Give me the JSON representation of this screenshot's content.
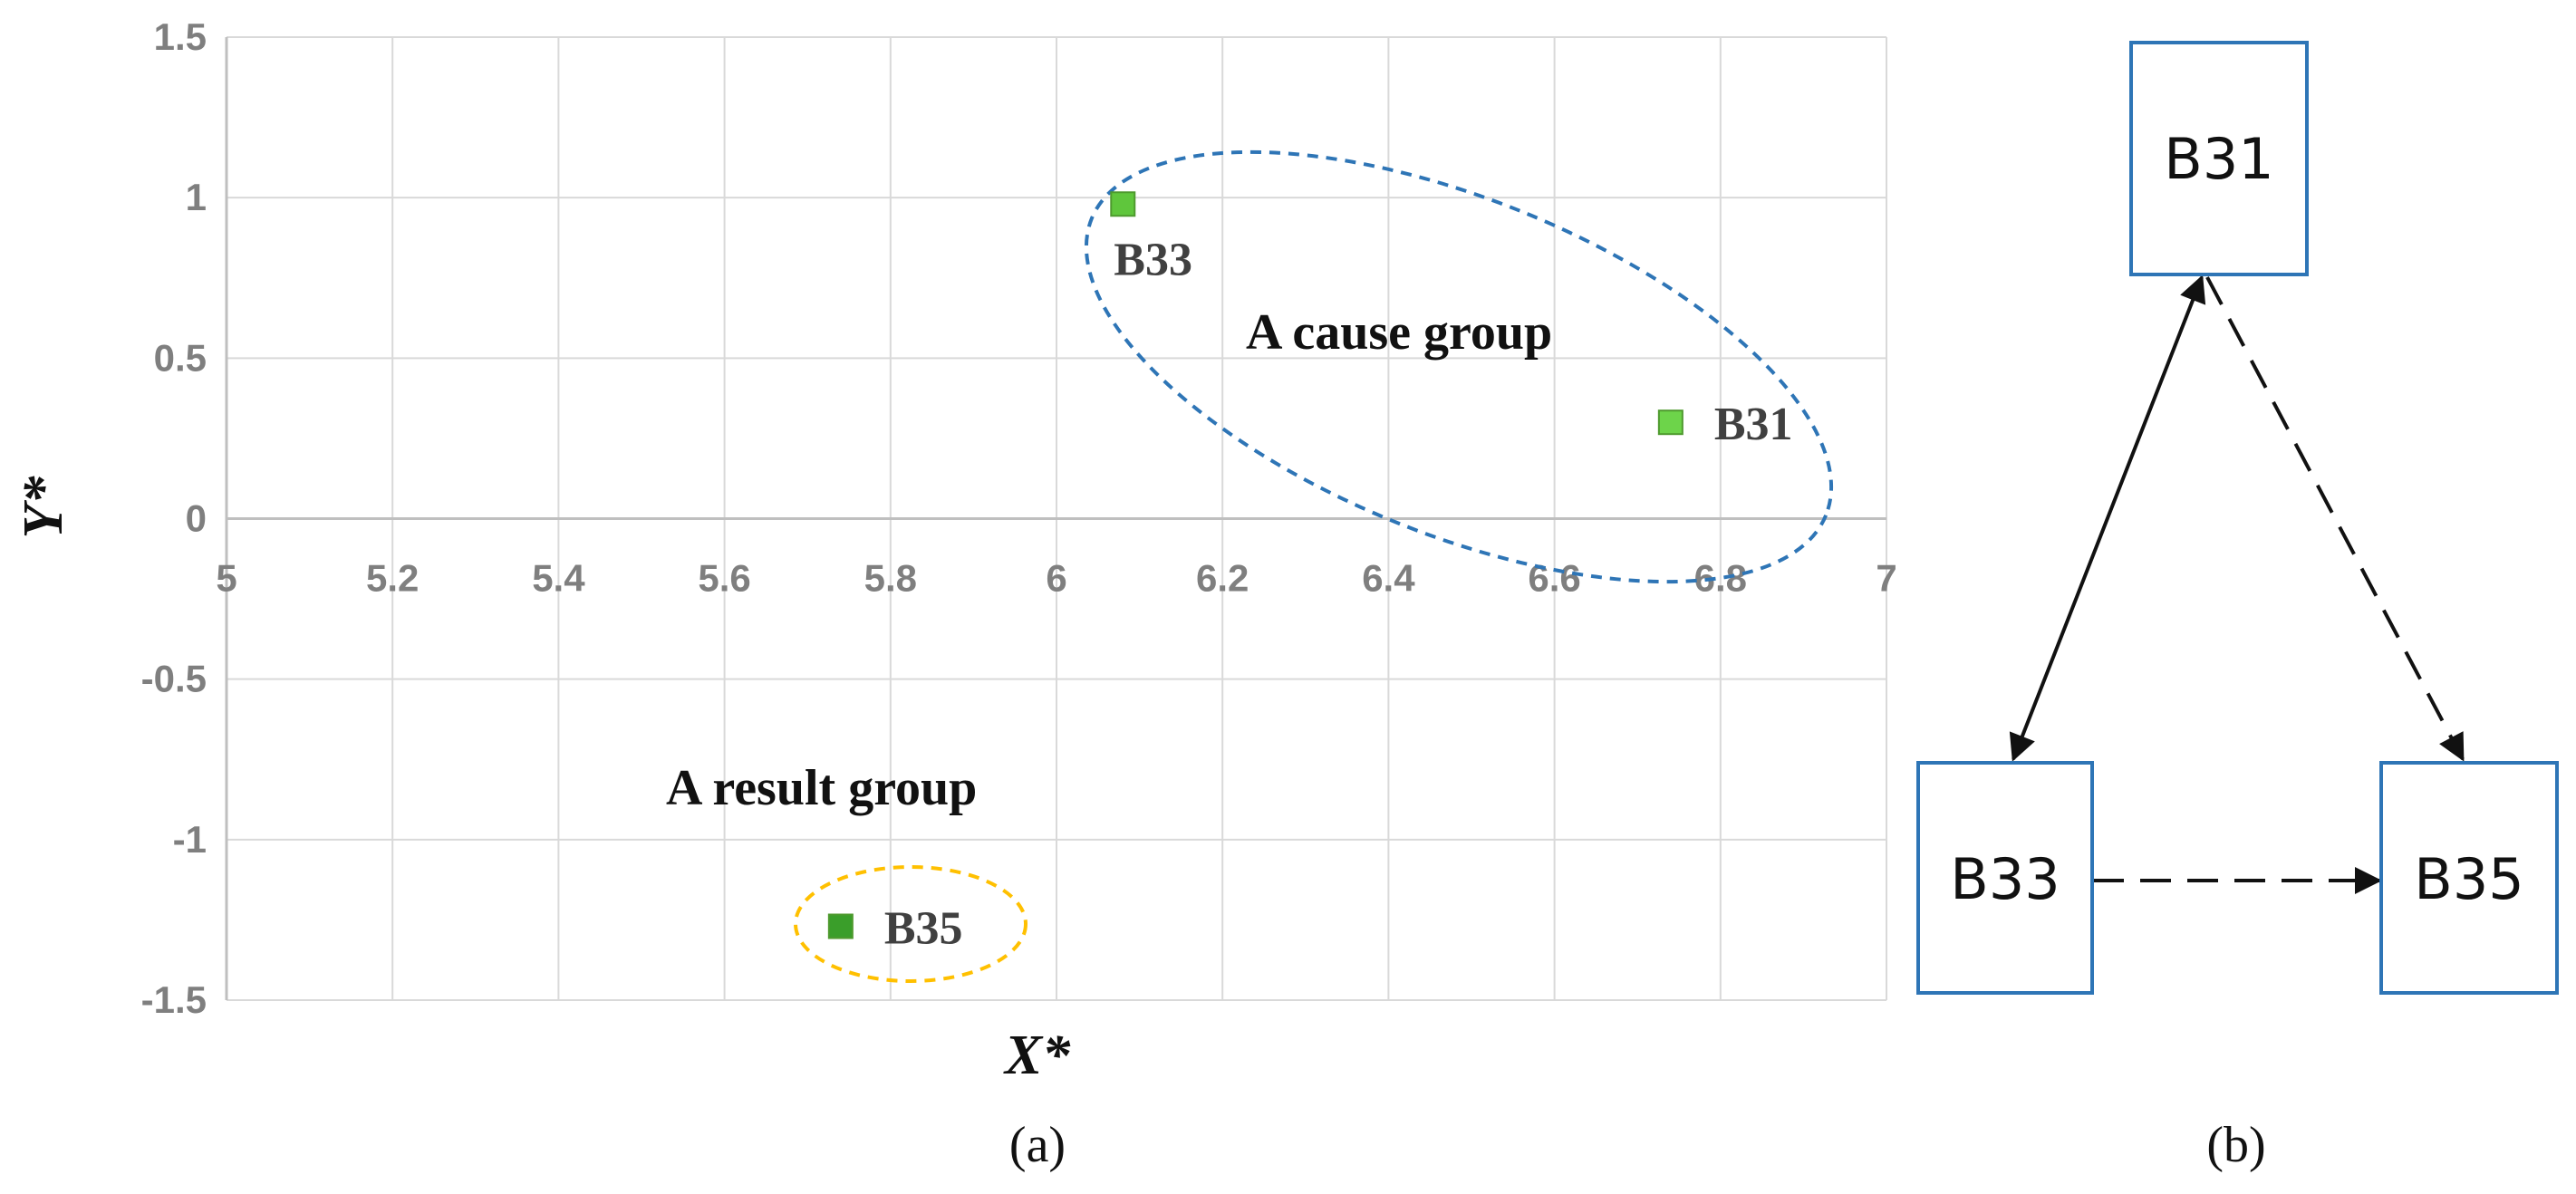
{
  "chart_data": {
    "type": "scatter",
    "xlabel": "X*",
    "ylabel": "Y*",
    "xlim": [
      5,
      7
    ],
    "ylim": [
      -1.5,
      1.5
    ],
    "x_ticks": [
      "5",
      "5.2",
      "5.4",
      "5.6",
      "5.8",
      "6",
      "6.2",
      "6.4",
      "6.6",
      "6.8",
      "7"
    ],
    "y_ticks": [
      "1.5",
      "1",
      "0.5",
      "0",
      "-0.5",
      "-1",
      "-1.5"
    ],
    "grid": true,
    "points": [
      {
        "label": "B33",
        "x": 6.08,
        "y": 0.98,
        "color": "#5fc63c"
      },
      {
        "label": "B31",
        "x": 6.74,
        "y": 0.3,
        "color": "#6dd44a"
      },
      {
        "label": "B35",
        "x": 5.74,
        "y": -1.27,
        "color": "#3a9e2a"
      }
    ],
    "groups": [
      {
        "label": "A cause group",
        "members": [
          "B33",
          "B31"
        ],
        "color": "#2e75b6"
      },
      {
        "label": "A result group",
        "members": [
          "B35"
        ],
        "color": "#ffc000"
      }
    ],
    "caption": "(a)"
  },
  "diagram": {
    "caption": "(b)",
    "nodes": [
      {
        "id": "B31",
        "label": "B31"
      },
      {
        "id": "B33",
        "label": "B33"
      },
      {
        "id": "B35",
        "label": "B35"
      }
    ],
    "edges": [
      {
        "from": "B31",
        "to": "B33",
        "style": "solid",
        "direction": "both"
      },
      {
        "from": "B31",
        "to": "B35",
        "style": "dashed",
        "direction": "forward"
      },
      {
        "from": "B33",
        "to": "B35",
        "style": "dashed",
        "direction": "forward"
      }
    ],
    "node_border_color": "#2e75b6"
  }
}
